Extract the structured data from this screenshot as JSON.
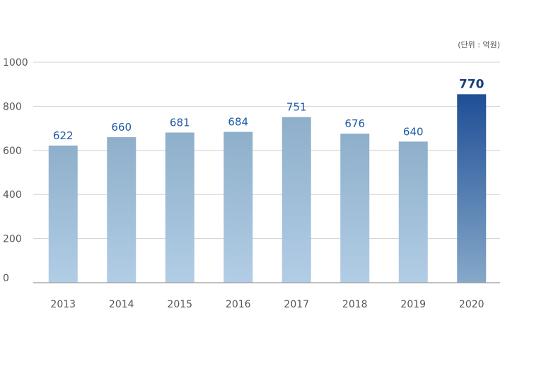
{
  "chart_data": {
    "type": "bar",
    "unit_note": "(단위 : 억원)",
    "categories": [
      "2013",
      "2014",
      "2015",
      "2016",
      "2017",
      "2018",
      "2019",
      "2020"
    ],
    "values": [
      622,
      660,
      681,
      684,
      751,
      676,
      640,
      770
    ],
    "highlight_index": 7,
    "yticks": [
      "0",
      "200",
      "400",
      "600",
      "800",
      "1000"
    ],
    "ylim": [
      0,
      1000
    ],
    "grid": true,
    "colors": {
      "bar_top": "#8eafca",
      "bar_bottom": "#b2cde6",
      "highlight_top": "#1f4e96",
      "highlight_bottom": "#86a9c9",
      "label": "#1f5aa6",
      "highlight_label": "#173d7a",
      "grid": "#d0d0d0",
      "axis": "#9a9a9a"
    }
  }
}
